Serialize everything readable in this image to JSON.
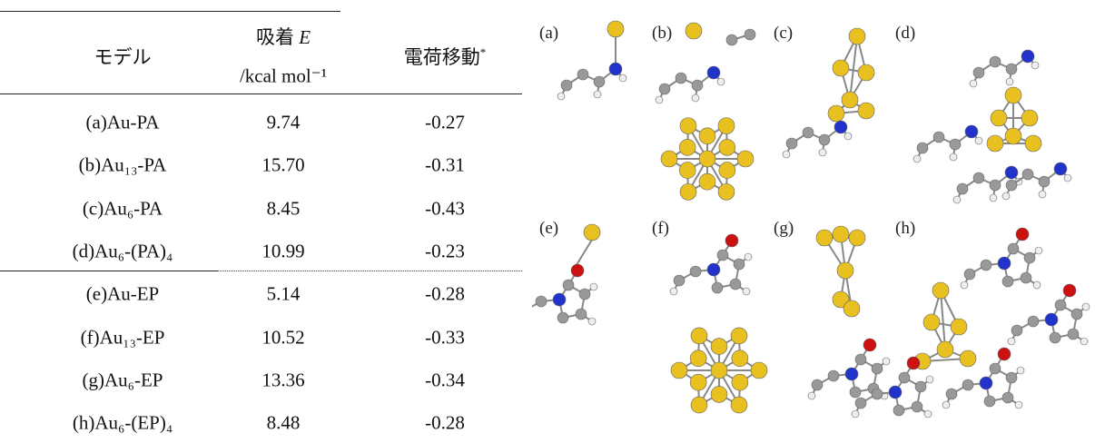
{
  "table": {
    "header": {
      "model": "モデル",
      "energy_prefix": "吸着",
      "energy_symbol": "E",
      "energy_unit": "/kcal mol⁻¹",
      "charge": "電荷移動",
      "charge_mark": "*"
    },
    "rows": [
      [
        "(a)Au-PA",
        "9.74",
        "-0.27"
      ],
      [
        "(b)Au₁₃-PA",
        "15.70",
        "-0.31"
      ],
      [
        "(c)Au₆-PA",
        "8.45",
        "-0.43"
      ],
      [
        "(d)Au₆-(PA)₄",
        "10.99",
        "-0.23"
      ],
      [
        "(e)Au-EP",
        "5.14",
        "-0.28"
      ],
      [
        "(f)Au₁₃-EP",
        "10.52",
        "-0.33"
      ],
      [
        "(g)Au₆-EP",
        "13.36",
        "-0.34"
      ],
      [
        "(h)Au₆-(EP)₄",
        "8.48",
        "-0.28"
      ]
    ]
  },
  "figure": {
    "panels": [
      "(a)",
      "(b)",
      "(c)",
      "(d)",
      "(e)",
      "(f)",
      "(g)",
      "(h)"
    ]
  }
}
